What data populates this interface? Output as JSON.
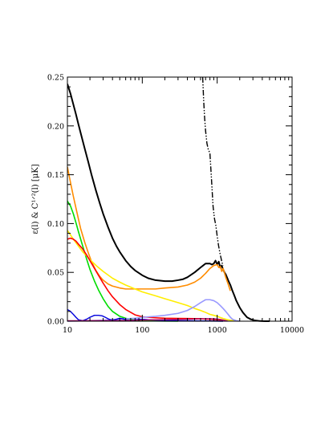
{
  "chart_data": {
    "type": "line",
    "title": "",
    "xlabel": "",
    "ylabel": "ε(l) & C¹ᐟ²(l) [μK]",
    "xscale": "log",
    "xlim": [
      10,
      10000
    ],
    "ylim": [
      0,
      0.25
    ],
    "x_ticks": [
      10,
      100,
      1000,
      10000
    ],
    "x_tick_labels": [
      "10",
      "100",
      "1000",
      "10000"
    ],
    "y_ticks": [
      0,
      0.05,
      0.1,
      0.15,
      0.2,
      0.25
    ],
    "y_tick_labels": [
      "0.00",
      "0.05",
      "0.10",
      "0.15",
      "0.20",
      "0.25"
    ],
    "grid": false,
    "legend": "none",
    "series": [
      {
        "color": "#000000",
        "dash": "dashdotdot",
        "width": 1.4,
        "x": [
          640,
          660,
          680,
          700,
          730,
          760,
          800,
          840,
          880,
          920,
          960,
          1000,
          1040,
          1080,
          1100,
          1130,
          1160,
          1200
        ],
        "y": [
          0.25,
          0.226,
          0.208,
          0.195,
          0.182,
          0.176,
          0.172,
          0.145,
          0.118,
          0.105,
          0.098,
          0.087,
          0.078,
          0.071,
          0.068,
          0.064,
          0.06,
          0.057
        ]
      },
      {
        "color": "#000000",
        "dash": "solid",
        "width": 2,
        "x": [
          10,
          11,
          12,
          13,
          14,
          15,
          17,
          19,
          21,
          24,
          27,
          30,
          35,
          40,
          45,
          50,
          60,
          70,
          80,
          100,
          120,
          150,
          200,
          250,
          300,
          350,
          400,
          500,
          600,
          700,
          800,
          850,
          900,
          950,
          1000,
          1050,
          1100,
          1150,
          1200,
          1250,
          1300,
          1350,
          1400,
          1500,
          1600,
          1700,
          1800,
          2000,
          2200,
          2500,
          2800,
          3200,
          3600,
          4000,
          4500,
          5000
        ],
        "y": [
          0.243,
          0.233,
          0.222,
          0.212,
          0.202,
          0.193,
          0.177,
          0.163,
          0.15,
          0.134,
          0.121,
          0.11,
          0.096,
          0.085,
          0.077,
          0.071,
          0.062,
          0.056,
          0.052,
          0.047,
          0.044,
          0.042,
          0.041,
          0.041,
          0.042,
          0.043,
          0.045,
          0.05,
          0.055,
          0.059,
          0.059,
          0.058,
          0.059,
          0.062,
          0.058,
          0.061,
          0.055,
          0.057,
          0.053,
          0.05,
          0.048,
          0.045,
          0.042,
          0.037,
          0.031,
          0.026,
          0.021,
          0.014,
          0.009,
          0.004,
          0.002,
          0.0007,
          0.0003,
          0.0001,
          0,
          0
        ]
      },
      {
        "color": "#ff8c00",
        "dash": "solid",
        "width": 1.6,
        "x": [
          10,
          11,
          12,
          13,
          14,
          15,
          17,
          19,
          21,
          24,
          27,
          30,
          35,
          40,
          50,
          60,
          80,
          100,
          150,
          200,
          300,
          400,
          500,
          600,
          700,
          800,
          900,
          1000,
          1050,
          1100,
          1150,
          1200,
          1300,
          1400,
          1500
        ],
        "y": [
          0.158,
          0.142,
          0.128,
          0.116,
          0.105,
          0.095,
          0.081,
          0.07,
          0.061,
          0.052,
          0.046,
          0.042,
          0.038,
          0.036,
          0.034,
          0.033,
          0.033,
          0.033,
          0.033,
          0.034,
          0.035,
          0.037,
          0.04,
          0.044,
          0.049,
          0.054,
          0.057,
          0.058,
          0.055,
          0.056,
          0.051,
          0.054,
          0.045,
          0.038,
          0.031
        ]
      },
      {
        "color": "#00dd00",
        "dash": "solid",
        "width": 1.6,
        "x": [
          10,
          11,
          12,
          13,
          14,
          16,
          18,
          20,
          23,
          26,
          30,
          35,
          40,
          50,
          60,
          80,
          100,
          150,
          200,
          300
        ],
        "y": [
          0.123,
          0.118,
          0.11,
          0.101,
          0.092,
          0.077,
          0.064,
          0.053,
          0.041,
          0.032,
          0.023,
          0.015,
          0.01,
          0.005,
          0.003,
          0.001,
          0.0005,
          0.0002,
          0.0001,
          0
        ]
      },
      {
        "color": "#ffee00",
        "dash": "solid",
        "width": 1.6,
        "x": [
          10,
          12,
          14,
          16,
          18,
          20,
          25,
          30,
          40,
          50,
          60,
          80,
          100,
          150,
          200,
          300,
          400,
          500,
          600,
          700,
          800,
          900,
          1000,
          1100,
          1200,
          1300,
          1400,
          1500,
          1700,
          1900
        ],
        "y": [
          0.093,
          0.084,
          0.077,
          0.071,
          0.067,
          0.063,
          0.056,
          0.051,
          0.044,
          0.04,
          0.037,
          0.033,
          0.03,
          0.026,
          0.023,
          0.019,
          0.016,
          0.013,
          0.011,
          0.009,
          0.007,
          0.006,
          0.005,
          0.0038,
          0.0028,
          0.002,
          0.0014,
          0.001,
          0.0004,
          0.0001
        ]
      },
      {
        "color": "#ff0000",
        "dash": "solid",
        "width": 1.6,
        "x": [
          10,
          11,
          12,
          13,
          14,
          16,
          18,
          20,
          23,
          26,
          30,
          35,
          40,
          50,
          60,
          80,
          100,
          150,
          200,
          300,
          400,
          600,
          800,
          1000,
          1200
        ],
        "y": [
          0.084,
          0.085,
          0.084,
          0.082,
          0.079,
          0.074,
          0.068,
          0.062,
          0.054,
          0.047,
          0.039,
          0.031,
          0.025,
          0.017,
          0.012,
          0.0065,
          0.0045,
          0.0035,
          0.003,
          0.0028,
          0.0027,
          0.0025,
          0.002,
          0.0015,
          0.0008
        ]
      },
      {
        "color": "#9999ff",
        "dash": "solid",
        "width": 1.6,
        "x": [
          10,
          15,
          20,
          30,
          50,
          80,
          100,
          150,
          200,
          300,
          400,
          500,
          600,
          700,
          800,
          900,
          1000,
          1100,
          1200,
          1300,
          1400,
          1500,
          1600,
          1800,
          2000
        ],
        "y": [
          0,
          0.0003,
          0.0005,
          0.001,
          0.002,
          0.003,
          0.004,
          0.005,
          0.006,
          0.008,
          0.011,
          0.015,
          0.019,
          0.022,
          0.022,
          0.021,
          0.019,
          0.016,
          0.013,
          0.01,
          0.007,
          0.004,
          0.002,
          0.0005,
          0
        ]
      },
      {
        "color": "#0000dd",
        "dash": "solid",
        "width": 1.4,
        "x": [
          10,
          11,
          12,
          13,
          14,
          16,
          18,
          20,
          23,
          26,
          29,
          32,
          36,
          40,
          45,
          50,
          55,
          60,
          70,
          80,
          100,
          120,
          150,
          200,
          250,
          300,
          400,
          600,
          800,
          1000,
          1200
        ],
        "y": [
          0.012,
          0.01,
          0.007,
          0.004,
          0.0015,
          0.0005,
          0.002,
          0.004,
          0.006,
          0.006,
          0.0055,
          0.004,
          0.002,
          0.001,
          0.002,
          0.003,
          0.0025,
          0.0015,
          0.0005,
          0.0015,
          0.002,
          0.0015,
          0.0012,
          0.001,
          0.0008,
          0.0006,
          0.0005,
          0.0003,
          0.0002,
          0.0001,
          0
        ]
      },
      {
        "color": "#aa0066",
        "dash": "solid",
        "width": 1.3,
        "x": [
          10,
          15,
          20,
          30,
          50,
          80,
          100,
          150,
          200,
          300,
          400,
          500,
          600,
          700,
          800,
          900,
          1000,
          1100,
          1200,
          1400
        ],
        "y": [
          0.0005,
          0.0005,
          0.0006,
          0.0006,
          0.0007,
          0.001,
          0.0012,
          0.0014,
          0.0016,
          0.0018,
          0.002,
          0.0022,
          0.0024,
          0.0025,
          0.0025,
          0.0024,
          0.0022,
          0.0018,
          0.0012,
          0
        ]
      }
    ]
  }
}
